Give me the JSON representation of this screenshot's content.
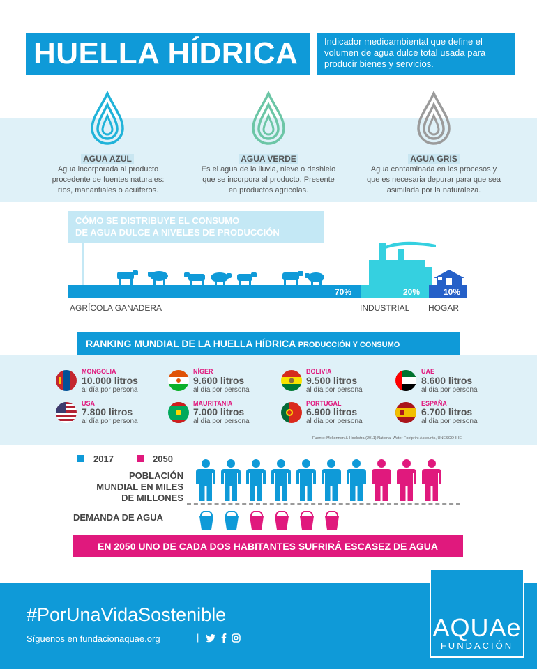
{
  "header": {
    "title": "HUELLA HÍDRICA",
    "description": "Indicador medioambiental que define el volumen de agua dulce total usada para producir bienes y servicios."
  },
  "water_types": [
    {
      "title": "AGUA AZUL",
      "color": "#20b3d9",
      "icon": "water-drop-icon",
      "desc_lines": [
        "Agua incorporada al producto",
        "procedente de fuentes naturales:",
        "ríos, manantiales o acuíferos."
      ]
    },
    {
      "title": "AGUA VERDE",
      "color": "#6cc6a6",
      "icon": "water-drop-icon",
      "desc_lines": [
        "Es el agua de la lluvia, nieve o deshielo",
        "que se incorpora al producto. Presente",
        "en productos agrícolas."
      ]
    },
    {
      "title": "AGUA GRIS",
      "color": "#9b9b9b",
      "icon": "water-drop-icon",
      "desc_lines": [
        "Agua contaminada en los procesos y",
        "que es necesaria depurar para que sea",
        "asimilada por la naturaleza."
      ]
    }
  ],
  "distribution": {
    "title_lines": [
      "CÓMO SE DISTRIBUYE EL CONSUMO",
      "DE AGUA DULCE A NIVELES DE PRODUCCIÓN"
    ],
    "sectors": [
      {
        "label": "AGRÍCOLA GANADERA",
        "percent": "70%",
        "value": 70,
        "icon": "livestock-icon"
      },
      {
        "label": "INDUSTRIAL",
        "percent": "20%",
        "value": 20,
        "icon": "factory-icon"
      },
      {
        "label": "HOGAR",
        "percent": "10%",
        "value": 10,
        "icon": "house-icon"
      }
    ]
  },
  "ranking": {
    "title": "RANKING MUNDIAL DE LA HUELLA HÍDRICA",
    "subtitle": "PRODUCCIÓN Y CONSUMO",
    "countries": [
      {
        "name": "MONGOLIA",
        "liters": "10.000 litros",
        "per_day": "al día por persona",
        "flag": "mongolia-flag"
      },
      {
        "name": "NÍGER",
        "liters": "9.600 litros",
        "per_day": "al día por persona",
        "flag": "niger-flag"
      },
      {
        "name": "BOLIVIA",
        "liters": "9.500 litros",
        "per_day": "al día por persona",
        "flag": "bolivia-flag"
      },
      {
        "name": "UAE",
        "liters": "8.600 litros",
        "per_day": "al día por persona",
        "flag": "uae-flag"
      },
      {
        "name": "USA",
        "liters": "7.800 litros",
        "per_day": "al día por persona",
        "flag": "usa-flag"
      },
      {
        "name": "MAURITANIA",
        "liters": "7.000 litros",
        "per_day": "al día por persona",
        "flag": "mauritania-flag"
      },
      {
        "name": "PORTUGAL",
        "liters": "6.900 litros",
        "per_day": "al día por persona",
        "flag": "portugal-flag"
      },
      {
        "name": "ESPAÑA",
        "liters": "6.700 litros",
        "per_day": "al día por persona",
        "flag": "spain-flag"
      }
    ],
    "source": "Fuente: Mekonnen & Hoekstra (2011) National Water Footprint Accounts, UNESCO-IHE"
  },
  "population": {
    "legend": [
      {
        "label": "2017",
        "color": "#0f9ad8"
      },
      {
        "label": "2050",
        "color": "#e0197d"
      }
    ],
    "population_label_lines": [
      "POBLACIÓN",
      "MUNDIAL EN MILES",
      "DE MILLONES"
    ],
    "demand_label": "DEMANDA DE AGUA",
    "people_2017": 7,
    "people_2050_extra": 3,
    "buckets_2017": 2,
    "buckets_2050_extra": 4,
    "scarcity_message": "EN 2050 UNO DE CADA DOS HABITANTES SUFRIRÁ ESCASEZ DE AGUA"
  },
  "footer": {
    "hashtag": "#PorUnaVidaSostenible",
    "follow_text": "Síguenos en fundacionaquae.org",
    "separator": "|",
    "social_icons": [
      "twitter-icon",
      "facebook-icon",
      "instagram-icon"
    ],
    "logo_main": "AQUAe",
    "logo_sub": "FUNDACIÓN"
  },
  "colors": {
    "brand_blue": "#0f9ad8",
    "light_band": "#dff1f8",
    "magenta": "#e0197d",
    "industrial": "#35d0e0",
    "home": "#2560c8"
  }
}
